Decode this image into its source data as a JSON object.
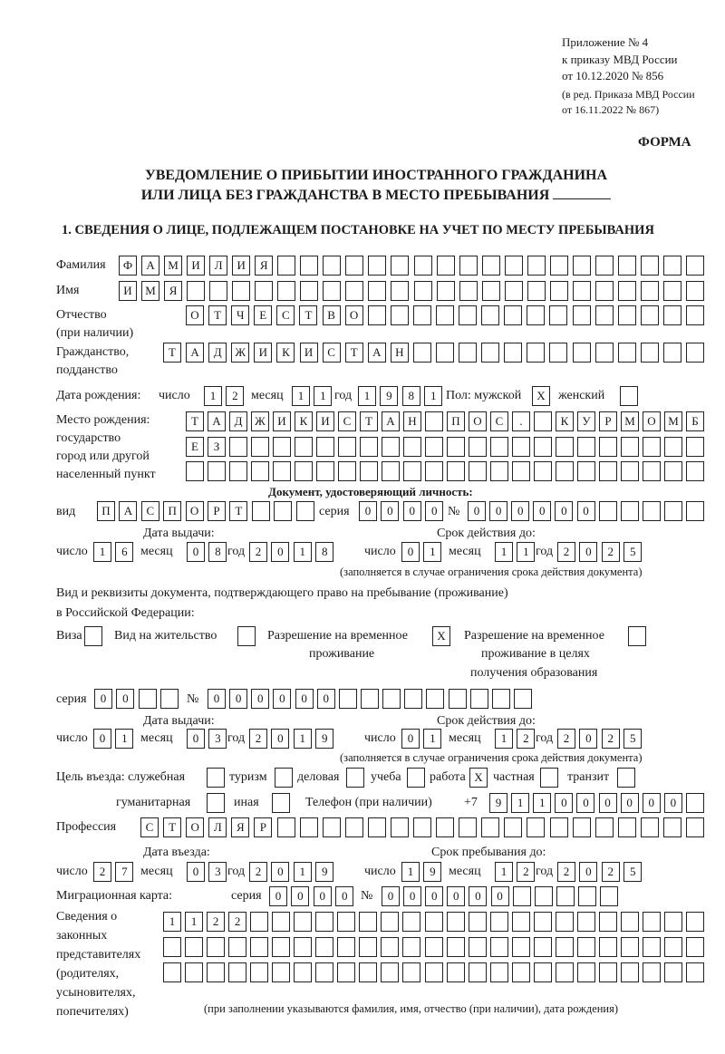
{
  "header": {
    "line1": "Приложение № 4",
    "line2": "к приказу МВД России",
    "line3": "от 10.12.2020 № 856",
    "line4": "(в ред. Приказа МВД России",
    "line5": "от 16.11.2022 № 867)"
  },
  "form_label": "ФОРМА",
  "title": {
    "line1": "УВЕДОМЛЕНИЕ О ПРИБЫТИИ ИНОСТРАННОГО ГРАЖДАНИНА",
    "line2": "ИЛИ ЛИЦА БЕЗ ГРАЖДАНСТВА В МЕСТО ПРЕБЫВАНИЯ"
  },
  "section1": "1. СВЕДЕНИЯ О ЛИЦЕ, ПОДЛЕЖАЩЕМ ПОСТАНОВКЕ НА УЧЕТ ПО МЕСТУ ПРЕБЫВАНИЯ",
  "person": {
    "surname": {
      "label": "Фамилия",
      "value": "ФАМИЛИЯ"
    },
    "name": {
      "label": "Имя",
      "value": "ИМЯ"
    },
    "patronymic": {
      "label": "Отчество",
      "label2": "(при наличии)",
      "value": "ОТЧЕСТВО"
    },
    "citizenship": {
      "label": "Гражданство,",
      "label2": "подданство",
      "value": "ТАДЖИКИСТАН"
    },
    "birth": {
      "label": "Дата рождения:",
      "day_label": "число",
      "day": "12",
      "month_label": "месяц",
      "month": "11",
      "year_label": "год",
      "year": "1981",
      "sex_label": "Пол: мужской",
      "male": "X",
      "female_label": "женский",
      "female": ""
    },
    "birthplace": {
      "label1": "Место рождения:",
      "label2": "государство",
      "label3": "город или другой",
      "label4": "населенный пункт",
      "row1": "ТАДЖИКИСТАН ПОС. КУРМОМБ",
      "row2": "ЕЗ",
      "row3": ""
    }
  },
  "id_document": {
    "heading": "Документ, удостоверяющий личность:",
    "kind_label": "вид",
    "kind": "ПАСПОРТ",
    "series_label": "серия",
    "series": "0000",
    "number_label": "№",
    "number": "000000",
    "issue_label": "Дата выдачи:",
    "valid_label": "Срок действия до:",
    "issue": {
      "day_label": "число",
      "day": "16",
      "month_label": "месяц",
      "month": "08",
      "year_label": "год",
      "year": "2018"
    },
    "valid": {
      "day_label": "число",
      "day": "01",
      "month_label": "месяц",
      "month": "11",
      "year_label": "год",
      "year": "2025"
    },
    "note": "(заполняется в случае ограничения срока действия документа)"
  },
  "stay_document": {
    "heading1": "Вид и реквизиты документа, подтверждающего право на пребывание (проживание)",
    "heading2": "в Российской Федерации:",
    "visa_label": "Виза",
    "visa": "",
    "residence_label": "Вид на жительство",
    "residence": "",
    "temp_label1": "Разрешение на временное",
    "temp_label2": "проживание",
    "temp": "X",
    "edu_label1": "Разрешение на временное",
    "edu_label2": "проживание в целях",
    "edu_label3": "получения образования",
    "edu": "",
    "series_label": "серия",
    "series": "00",
    "number_label": "№",
    "number": "000000",
    "issue_label": "Дата выдачи:",
    "valid_label": "Срок действия до:",
    "issue": {
      "day_label": "число",
      "day": "01",
      "month_label": "месяц",
      "month": "03",
      "year_label": "год",
      "year": "2019"
    },
    "valid": {
      "day_label": "число",
      "day": "01",
      "month_label": "месяц",
      "month": "12",
      "year_label": "год",
      "year": "2025"
    },
    "note": "(заполняется в случае ограничения срока действия документа)"
  },
  "purpose": {
    "label": "Цель въезда: служебная",
    "official": "",
    "tourism_label": "туризм",
    "tourism": "",
    "business_label": "деловая",
    "business": "",
    "study_label": "учеба",
    "study": "",
    "work_label": "работа",
    "work": "X",
    "private_label": "частная",
    "private": "",
    "transit_label": "транзит",
    "transit": "",
    "humanitarian_label": "гуманитарная",
    "humanitarian": "",
    "other_label": "иная",
    "other": ""
  },
  "phone": {
    "label": "Телефон (при наличии)",
    "prefix": "+7",
    "value": "911000000"
  },
  "profession": {
    "label": "Профессия",
    "value": "СТОЛЯР"
  },
  "entry": {
    "entry_label": "Дата въезда:",
    "stay_label": "Срок пребывания до:",
    "entry_date": {
      "day_label": "число",
      "day": "27",
      "month_label": "месяц",
      "month": "03",
      "year_label": "год",
      "year": "2019"
    },
    "stay_until": {
      "day_label": "число",
      "day": "19",
      "month_label": "месяц",
      "month": "12",
      "year_label": "год",
      "year": "2025"
    }
  },
  "migration_card": {
    "label": "Миграционная карта:",
    "series_label": "серия",
    "series": "0000",
    "number_label": "№",
    "number": "000000"
  },
  "representatives": {
    "label1": "Сведения о",
    "label2": "законных",
    "label3": "представителях",
    "label4": "(родителях,",
    "label5": "усыновителях,",
    "label6": "попечителях)",
    "row1": "1122",
    "row2": "",
    "row3": "",
    "note": "(при заполнении указываются фамилия, имя, отчество (при наличии), дата рождения)"
  }
}
